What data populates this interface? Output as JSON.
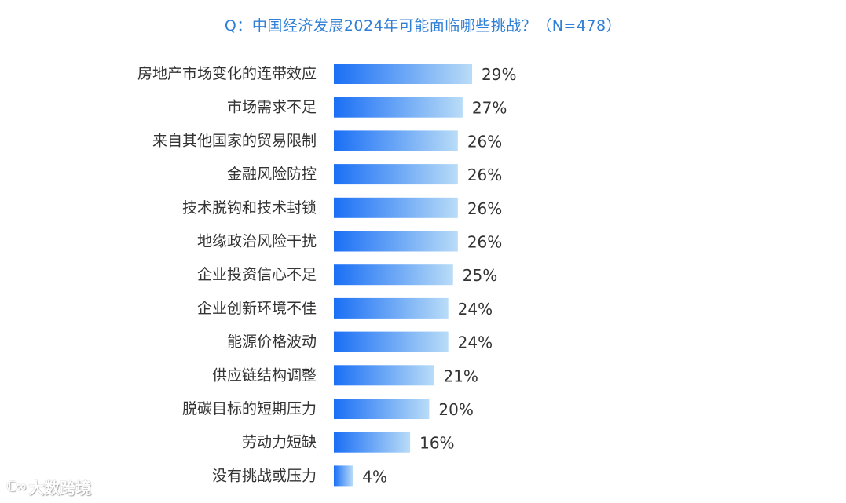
{
  "chart_data": {
    "type": "bar",
    "orientation": "horizontal",
    "title": "Q：中国经济发展2024年可能面临哪些挑战？（N=478）",
    "categories": [
      "房地产市场变化的连带效应",
      "市场需求不足",
      "来自其他国家的贸易限制",
      "金融风险防控",
      "技术脱钩和技术封锁",
      "地缘政治风险干扰",
      "企业投资信心不足",
      "企业创新环境不佳",
      "能源价格波动",
      "供应链结构调整",
      "脱碳目标的短期压力",
      "劳动力短缺",
      "没有挑战或压力"
    ],
    "values": [
      29,
      27,
      26,
      26,
      26,
      26,
      25,
      24,
      24,
      21,
      20,
      16,
      4
    ],
    "value_labels": [
      "29%",
      "27%",
      "26%",
      "26%",
      "26%",
      "26%",
      "25%",
      "24%",
      "24%",
      "21%",
      "20%",
      "16%",
      "4%"
    ],
    "unit": "%",
    "xlim": [
      0,
      100
    ],
    "grid": false,
    "legend": "none",
    "colors": {
      "title": "#2f7fd6",
      "bar_start": "#1a6ff5",
      "bar_end": "#b9dcf7",
      "label": "#333333"
    }
  },
  "watermark": {
    "text": "大数跨境"
  }
}
